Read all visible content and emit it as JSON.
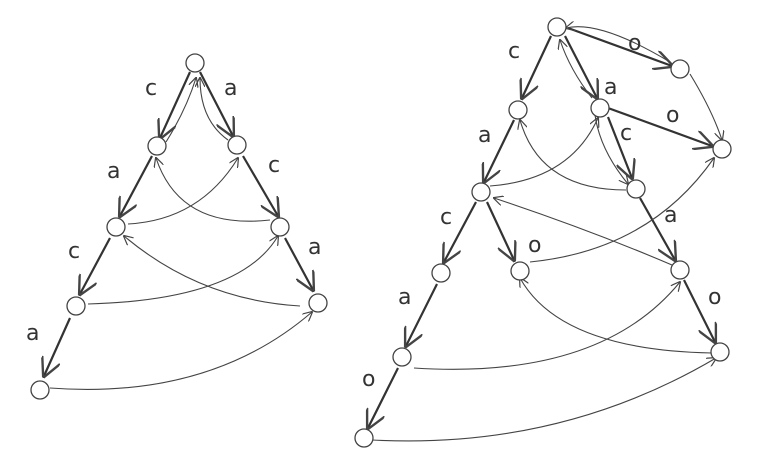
{
  "diagram_left": {
    "labels": [
      "c",
      "a",
      "a",
      "c",
      "c",
      "a",
      "a"
    ]
  },
  "diagram_right": {
    "labels": [
      "c",
      "o",
      "a",
      "a",
      "o",
      "c",
      "c",
      "o",
      "a",
      "a",
      "o",
      "o"
    ]
  },
  "colors": {
    "stroke": "#444444",
    "background": "#ffffff"
  }
}
